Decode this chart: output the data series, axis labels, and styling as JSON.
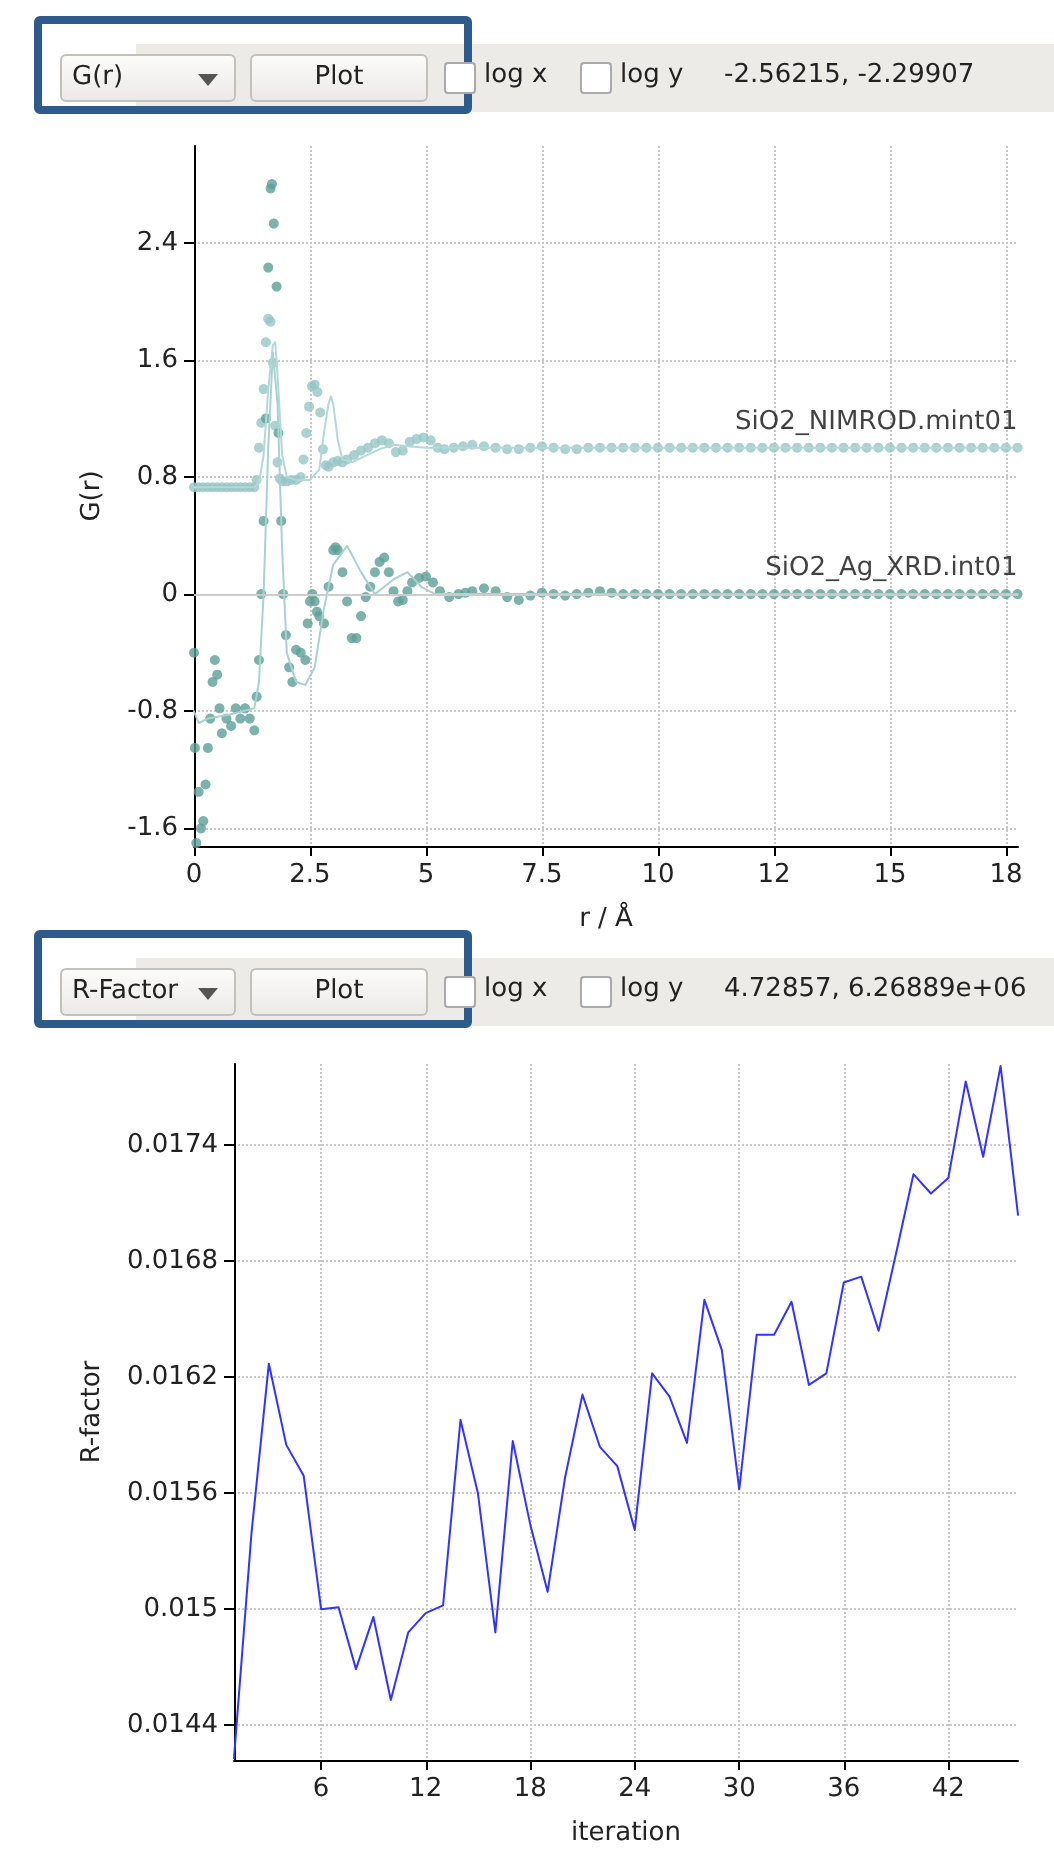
{
  "chart_data": [
    {
      "type": "scatter",
      "xlabel": "r / Å",
      "ylabel": "G(r)",
      "annotations": [
        "G(r)",
        "Plot",
        "log x",
        "log y",
        "-2.56215, -2.29907"
      ],
      "xlim": [
        0,
        17.76
      ],
      "ylim": [
        -1.72,
        3.06
      ],
      "xticks": [
        0,
        2.5,
        5,
        7.5,
        10,
        {
          "value": 12.5,
          "label": "12"
        },
        15,
        {
          "value": 17.5,
          "label": "18"
        }
      ],
      "yticks": [
        -1.6,
        -0.8,
        0,
        0.8,
        1.6,
        2.4
      ],
      "grid": true,
      "line_style": "solid",
      "ref_lines": [
        {
          "axis": "y",
          "value": 0,
          "color": "#cccccc"
        }
      ],
      "series": [
        {
          "name": "SiO2_NIMROD.mint01",
          "marker": "circle",
          "color": "#96c5c6",
          "x": [
            0,
            0.1,
            0.2,
            0.3,
            0.4,
            0.5,
            0.6,
            0.7,
            0.8,
            0.9,
            1.0,
            1.1,
            1.2,
            1.3,
            1.35,
            1.4,
            1.45,
            1.5,
            1.55,
            1.6,
            1.65,
            1.7,
            1.75,
            1.8,
            1.85,
            1.9,
            2.0,
            2.1,
            2.2,
            2.3,
            2.36,
            2.42,
            2.48,
            2.54,
            2.6,
            2.66,
            2.72,
            2.78,
            2.84,
            2.9,
            3.0,
            3.1,
            3.2,
            3.3,
            3.45,
            3.6,
            3.75,
            3.9,
            4.05,
            4.2,
            4.35,
            4.5,
            4.65,
            4.8,
            4.95,
            5.1,
            5.25,
            5.4,
            5.6,
            5.8,
            6.0,
            6.25,
            6.5,
            6.75,
            7.0,
            7.25,
            7.5,
            7.75,
            8.0,
            8.25,
            8.5,
            8.75,
            9.0,
            9.25,
            9.5,
            9.75,
            10.0,
            10.25,
            10.5,
            10.75,
            11.0,
            11.25,
            11.5,
            11.75,
            12.0,
            12.25,
            12.5,
            12.75,
            13.0,
            13.25,
            13.5,
            13.75,
            14.0,
            14.25,
            14.5,
            14.75,
            15.0,
            15.25,
            15.5,
            15.75,
            16.0,
            16.25,
            16.5,
            16.75,
            17.0,
            17.25,
            17.5,
            17.75
          ],
          "values": [
            0.73,
            0.73,
            0.73,
            0.73,
            0.73,
            0.73,
            0.73,
            0.73,
            0.73,
            0.73,
            0.73,
            0.73,
            0.73,
            0.73,
            0.78,
            1.0,
            1.17,
            1.4,
            1.72,
            1.88,
            1.86,
            1.58,
            1.15,
            0.9,
            0.79,
            0.77,
            0.77,
            0.78,
            0.78,
            0.8,
            0.92,
            1.1,
            1.28,
            1.42,
            1.43,
            1.38,
            1.24,
            0.99,
            0.88,
            0.87,
            0.9,
            0.91,
            0.9,
            0.92,
            0.95,
            0.98,
            1.0,
            1.03,
            1.05,
            1.03,
            0.97,
            0.98,
            1.04,
            1.06,
            1.07,
            1.05,
            1.0,
            0.99,
            1.0,
            1.01,
            1.02,
            1.01,
            1.0,
            0.99,
            0.99,
            1.0,
            1.01,
            1.0,
            0.99,
            0.99,
            1.0,
            1.0,
            1.0,
            1.0,
            1.0,
            1.0,
            1.0,
            1.0,
            1.0,
            1.0,
            1.0,
            1.0,
            1.0,
            1.0,
            1.0,
            1.0,
            1.0,
            1.0,
            1.0,
            1.0,
            1.0,
            1.0,
            1.0,
            1.0,
            1.0,
            1.0,
            1.0,
            1.0,
            1.0,
            1.0,
            1.0,
            1.0,
            1.0,
            1.0,
            1.0,
            1.0,
            1.0,
            1.0
          ]
        },
        {
          "type": "line",
          "color": "#b3d8d8",
          "x": [
            0,
            1.3,
            1.4,
            1.5,
            1.6,
            1.7,
            1.75,
            1.8,
            1.9,
            2.0,
            2.2,
            2.5,
            2.7,
            2.8,
            2.9,
            2.95,
            3.0,
            3.1,
            3.2,
            3.4,
            3.6,
            3.8,
            4.0,
            4.3,
            4.6,
            5.0,
            5.5,
            6,
            7,
            8,
            10,
            12,
            14,
            16,
            17.76
          ],
          "values": [
            0.73,
            0.73,
            0.76,
            0.95,
            1.4,
            1.7,
            1.72,
            1.5,
            0.95,
            0.8,
            0.78,
            0.78,
            0.85,
            1.1,
            1.3,
            1.35,
            1.3,
            1.05,
            0.92,
            0.9,
            0.93,
            0.96,
            0.99,
            1.02,
            1.01,
            1.0,
            1.0,
            1.0,
            1.0,
            1.0,
            1.0,
            1.0,
            1.0,
            1.0,
            1.0
          ]
        },
        {
          "name": "SiO2_Ag_XRD.int01",
          "marker": "circle",
          "color": "#5b9f96",
          "x": [
            0,
            0.02,
            0.05,
            0.1,
            0.15,
            0.2,
            0.25,
            0.3,
            0.35,
            0.4,
            0.45,
            0.5,
            0.55,
            0.6,
            0.7,
            0.8,
            0.9,
            1.0,
            1.1,
            1.2,
            1.3,
            1.35,
            1.4,
            1.45,
            1.5,
            1.55,
            1.6,
            1.65,
            1.68,
            1.72,
            1.78,
            1.82,
            1.88,
            1.92,
            1.98,
            2.05,
            2.12,
            2.2,
            2.3,
            2.4,
            2.45,
            2.5,
            2.55,
            2.6,
            2.65,
            2.7,
            2.8,
            2.9,
            3.0,
            3.05,
            3.1,
            3.2,
            3.3,
            3.4,
            3.5,
            3.6,
            3.7,
            3.8,
            3.9,
            4.0,
            4.1,
            4.2,
            4.3,
            4.4,
            4.5,
            4.6,
            4.7,
            4.85,
            5.0,
            5.15,
            5.3,
            5.5,
            5.7,
            5.85,
            6.0,
            6.25,
            6.5,
            6.75,
            7.0,
            7.25,
            7.5,
            7.75,
            8.0,
            8.25,
            8.5,
            8.75,
            9.0,
            9.25,
            9.5,
            9.75,
            10.0,
            10.25,
            10.5,
            10.75,
            11.0,
            11.25,
            11.5,
            11.75,
            12.0,
            12.25,
            12.5,
            12.75,
            13.0,
            13.25,
            13.5,
            13.75,
            14.0,
            14.25,
            14.5,
            14.75,
            15.0,
            15.25,
            15.5,
            15.75,
            16.0,
            16.25,
            16.5,
            16.75,
            17.0,
            17.25,
            17.5,
            17.75
          ],
          "values": [
            -0.4,
            -1.05,
            -1.7,
            -1.35,
            -1.6,
            -1.55,
            -1.3,
            -1.05,
            -0.85,
            -0.6,
            -0.45,
            -0.55,
            -0.78,
            -0.95,
            -0.85,
            -0.9,
            -0.78,
            -0.85,
            -0.78,
            -0.85,
            -0.93,
            -0.7,
            -0.45,
            0.0,
            0.5,
            1.2,
            2.23,
            2.77,
            2.8,
            2.53,
            2.1,
            1.1,
            0.5,
            0.0,
            -0.28,
            -0.5,
            -0.6,
            -0.38,
            -0.4,
            -0.45,
            -0.2,
            -0.05,
            0.0,
            -0.05,
            -0.12,
            -0.15,
            -0.2,
            0.05,
            0.3,
            0.32,
            0.3,
            0.15,
            -0.05,
            -0.3,
            -0.3,
            -0.15,
            -0.02,
            0.05,
            0.15,
            0.22,
            0.25,
            0.15,
            0.02,
            -0.05,
            -0.04,
            0.02,
            0.08,
            0.11,
            0.12,
            0.08,
            0.02,
            -0.02,
            0.0,
            0.01,
            0.02,
            0.04,
            0.02,
            -0.02,
            -0.04,
            -0.01,
            0.01,
            0.0,
            -0.01,
            0.0,
            0.01,
            0.02,
            0.01,
            0.0,
            0.0,
            0.0,
            0.0,
            0.0,
            0.0,
            0.0,
            0.0,
            0.0,
            0.0,
            0.0,
            0.0,
            0.0,
            0.0,
            0.0,
            0.0,
            0.0,
            0.0,
            0.0,
            0.0,
            0.0,
            0.0,
            0.0,
            0.0,
            0.0,
            0.0,
            0.0,
            0.0,
            0.0,
            0.0,
            0.0,
            0.0,
            0.0,
            0.0,
            0.0
          ]
        },
        {
          "type": "line",
          "color": "#a9d2cf",
          "x": [
            0,
            0.1,
            0.3,
            0.8,
            1.3,
            1.4,
            1.5,
            1.6,
            1.7,
            1.8,
            1.9,
            2.0,
            2.2,
            2.4,
            2.6,
            2.8,
            3.0,
            3.3,
            3.6,
            3.9,
            4.3,
            4.6,
            4.9,
            5.2,
            6,
            8,
            10,
            12,
            14,
            16,
            17.76
          ],
          "values": [
            -0.8,
            -0.88,
            -0.85,
            -0.82,
            -0.78,
            -0.6,
            0.0,
            1.0,
            1.65,
            1.3,
            0.3,
            -0.4,
            -0.6,
            -0.62,
            -0.5,
            -0.1,
            0.2,
            0.33,
            0.15,
            0.0,
            0.1,
            0.15,
            0.05,
            0.0,
            0.0,
            0.0,
            0.0,
            0.0,
            0.0,
            0.0,
            0.0
          ]
        }
      ]
    },
    {
      "type": "line",
      "xlabel": "iteration",
      "ylabel": "R-factor",
      "annotations": [
        "R-Factor",
        "Plot",
        "log x",
        "log y",
        "4.72857, 6.26889e+06"
      ],
      "xlim": [
        1,
        46
      ],
      "ylim": [
        0.01422,
        0.01782
      ],
      "xticks": [
        6,
        12,
        18,
        24,
        30,
        36,
        42
      ],
      "yticks": [
        0.0144,
        0.015,
        0.0156,
        0.0162,
        0.0168,
        0.0174
      ],
      "grid": true,
      "line_style": "solid",
      "x": [
        1,
        2,
        3,
        4,
        5,
        6,
        7,
        8,
        9,
        10,
        11,
        12,
        13,
        14,
        15,
        16,
        17,
        18,
        19,
        20,
        21,
        22,
        23,
        24,
        25,
        26,
        27,
        28,
        29,
        30,
        31,
        32,
        33,
        34,
        35,
        36,
        37,
        38,
        39,
        40,
        41,
        42,
        43,
        44,
        45,
        46
      ],
      "series": [
        {
          "color": "#3333ff",
          "values": [
            0.01423,
            0.01539,
            0.01627,
            0.01585,
            0.01569,
            0.015,
            0.01501,
            0.01469,
            0.01496,
            0.01453,
            0.01488,
            0.01498,
            0.01502,
            0.01598,
            0.0156,
            0.01488,
            0.01587,
            0.01544,
            0.01509,
            0.01568,
            0.01611,
            0.01584,
            0.01574,
            0.01541,
            0.01622,
            0.0161,
            0.01586,
            0.0166,
            0.01634,
            0.01562,
            0.01642,
            0.01642,
            0.01659,
            0.01616,
            0.01622,
            0.01669,
            0.01672,
            0.01644,
            0.01684,
            0.01725,
            0.01715,
            0.01723,
            0.01773,
            0.01734,
            0.01781,
            0.01704
          ]
        }
      ]
    }
  ]
}
